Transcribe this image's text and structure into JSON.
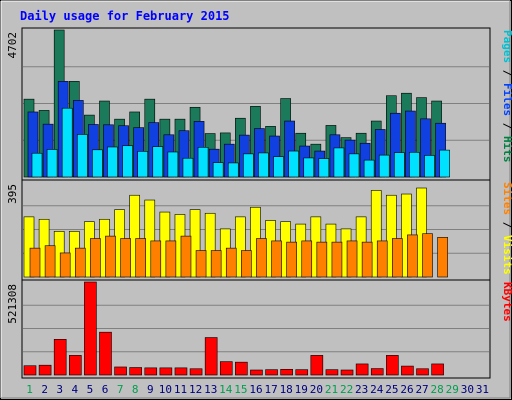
{
  "chart_data": {
    "type": "bar",
    "title": "Daily usage for February 2015",
    "days": [
      "1",
      "2",
      "3",
      "4",
      "5",
      "6",
      "7",
      "8",
      "9",
      "10",
      "11",
      "12",
      "13",
      "14",
      "15",
      "16",
      "17",
      "18",
      "19",
      "20",
      "21",
      "22",
      "23",
      "24",
      "25",
      "26",
      "27",
      "28",
      "29",
      "30",
      "31"
    ],
    "weekend_days": [
      "1",
      "7",
      "8",
      "14",
      "15",
      "21",
      "22",
      "28",
      "29"
    ],
    "panels": [
      {
        "id": "pages-files-hits",
        "max_label": "4702",
        "ymax": 4702,
        "legend": [
          {
            "text": "Pages",
            "color": "#00c0d0"
          },
          {
            "text": " / ",
            "color": "#000000"
          },
          {
            "text": "Files",
            "color": "#0040ff"
          },
          {
            "text": " / ",
            "color": "#000000"
          },
          {
            "text": "Hits",
            "color": "#008040"
          }
        ],
        "series": [
          {
            "name": "Hits",
            "color": "#1a7a5a",
            "offset": 0,
            "values": [
              2490,
              2130,
              4702,
              3060,
              1980,
              2430,
              1850,
              2080,
              2490,
              1850,
              1850,
              2230,
              1390,
              1410,
              1880,
              2260,
              1620,
              2510,
              1400,
              1050,
              1650,
              1260,
              1400,
              1790,
              2600,
              2680,
              2540,
              2430,
              null,
              null,
              null
            ]
          },
          {
            "name": "Files",
            "color": "#1040e0",
            "offset": 4,
            "values": [
              2080,
              1690,
              3060,
              2450,
              1680,
              1670,
              1640,
              1580,
              1740,
              1350,
              1480,
              1780,
              890,
              1050,
              1340,
              1550,
              1310,
              1790,
              990,
              830,
              1350,
              1180,
              1080,
              1520,
              2040,
              2110,
              1860,
              1720,
              null,
              null,
              null
            ]
          },
          {
            "name": "Pages",
            "color": "#00e0ff",
            "offset": 8,
            "values": [
              760,
              880,
              2200,
              1360,
              870,
              960,
              1000,
              820,
              970,
              800,
              600,
              950,
              460,
              450,
              740,
              770,
              650,
              830,
              610,
              590,
              930,
              740,
              540,
              700,
              780,
              790,
              690,
              860,
              null,
              null,
              null
            ]
          }
        ]
      },
      {
        "id": "sites-visits",
        "max_label": "395",
        "ymax": 395,
        "legend": [
          {
            "text": "Sites",
            "color": "#ff8000"
          },
          {
            "text": " / ",
            "color": "#000000"
          },
          {
            "text": "Visits",
            "color": "#ffff00"
          }
        ],
        "series": [
          {
            "name": "Visits",
            "color": "#ffff00",
            "offset": 0,
            "values": [
              250,
              240,
              190,
              190,
              230,
              240,
              280,
              340,
              320,
              270,
              260,
              280,
              265,
              200,
              250,
              290,
              235,
              230,
              220,
              250,
              220,
              200,
              250,
              360,
              340,
              345,
              370,
              null,
              null,
              null,
              null
            ]
          },
          {
            "name": "Sites",
            "color": "#ff8000",
            "offset": 6,
            "values": [
              120,
              130,
              100,
              120,
              160,
              170,
              160,
              160,
              150,
              150,
              170,
              110,
              110,
              120,
              110,
              160,
              150,
              145,
              150,
              145,
              145,
              150,
              145,
              150,
              160,
              175,
              180,
              165,
              null,
              null,
              null
            ]
          }
        ]
      },
      {
        "id": "kbytes",
        "max_label": "521308",
        "ymax": 521308,
        "legend": [
          {
            "text": "KBytes",
            "color": "#ff0000"
          }
        ],
        "series": [
          {
            "name": "KBytes",
            "color": "#ff0000",
            "offset": 0,
            "values": [
              52000,
              55000,
              200000,
              110000,
              521308,
              240000,
              45000,
              42000,
              40000,
              40000,
              40000,
              35000,
              210000,
              75000,
              72000,
              28000,
              30000,
              32000,
              30000,
              110000,
              30000,
              28000,
              62000,
              36000,
              110000,
              50000,
              35000,
              62000,
              null,
              null,
              null
            ]
          }
        ]
      }
    ],
    "colors": {
      "background": "#c0c0c0",
      "plot_background": "#c0c0c0",
      "title": "#0000ff",
      "weekday_label": "#000080",
      "weekend_label": "#00a050",
      "grid": "#808080"
    }
  }
}
